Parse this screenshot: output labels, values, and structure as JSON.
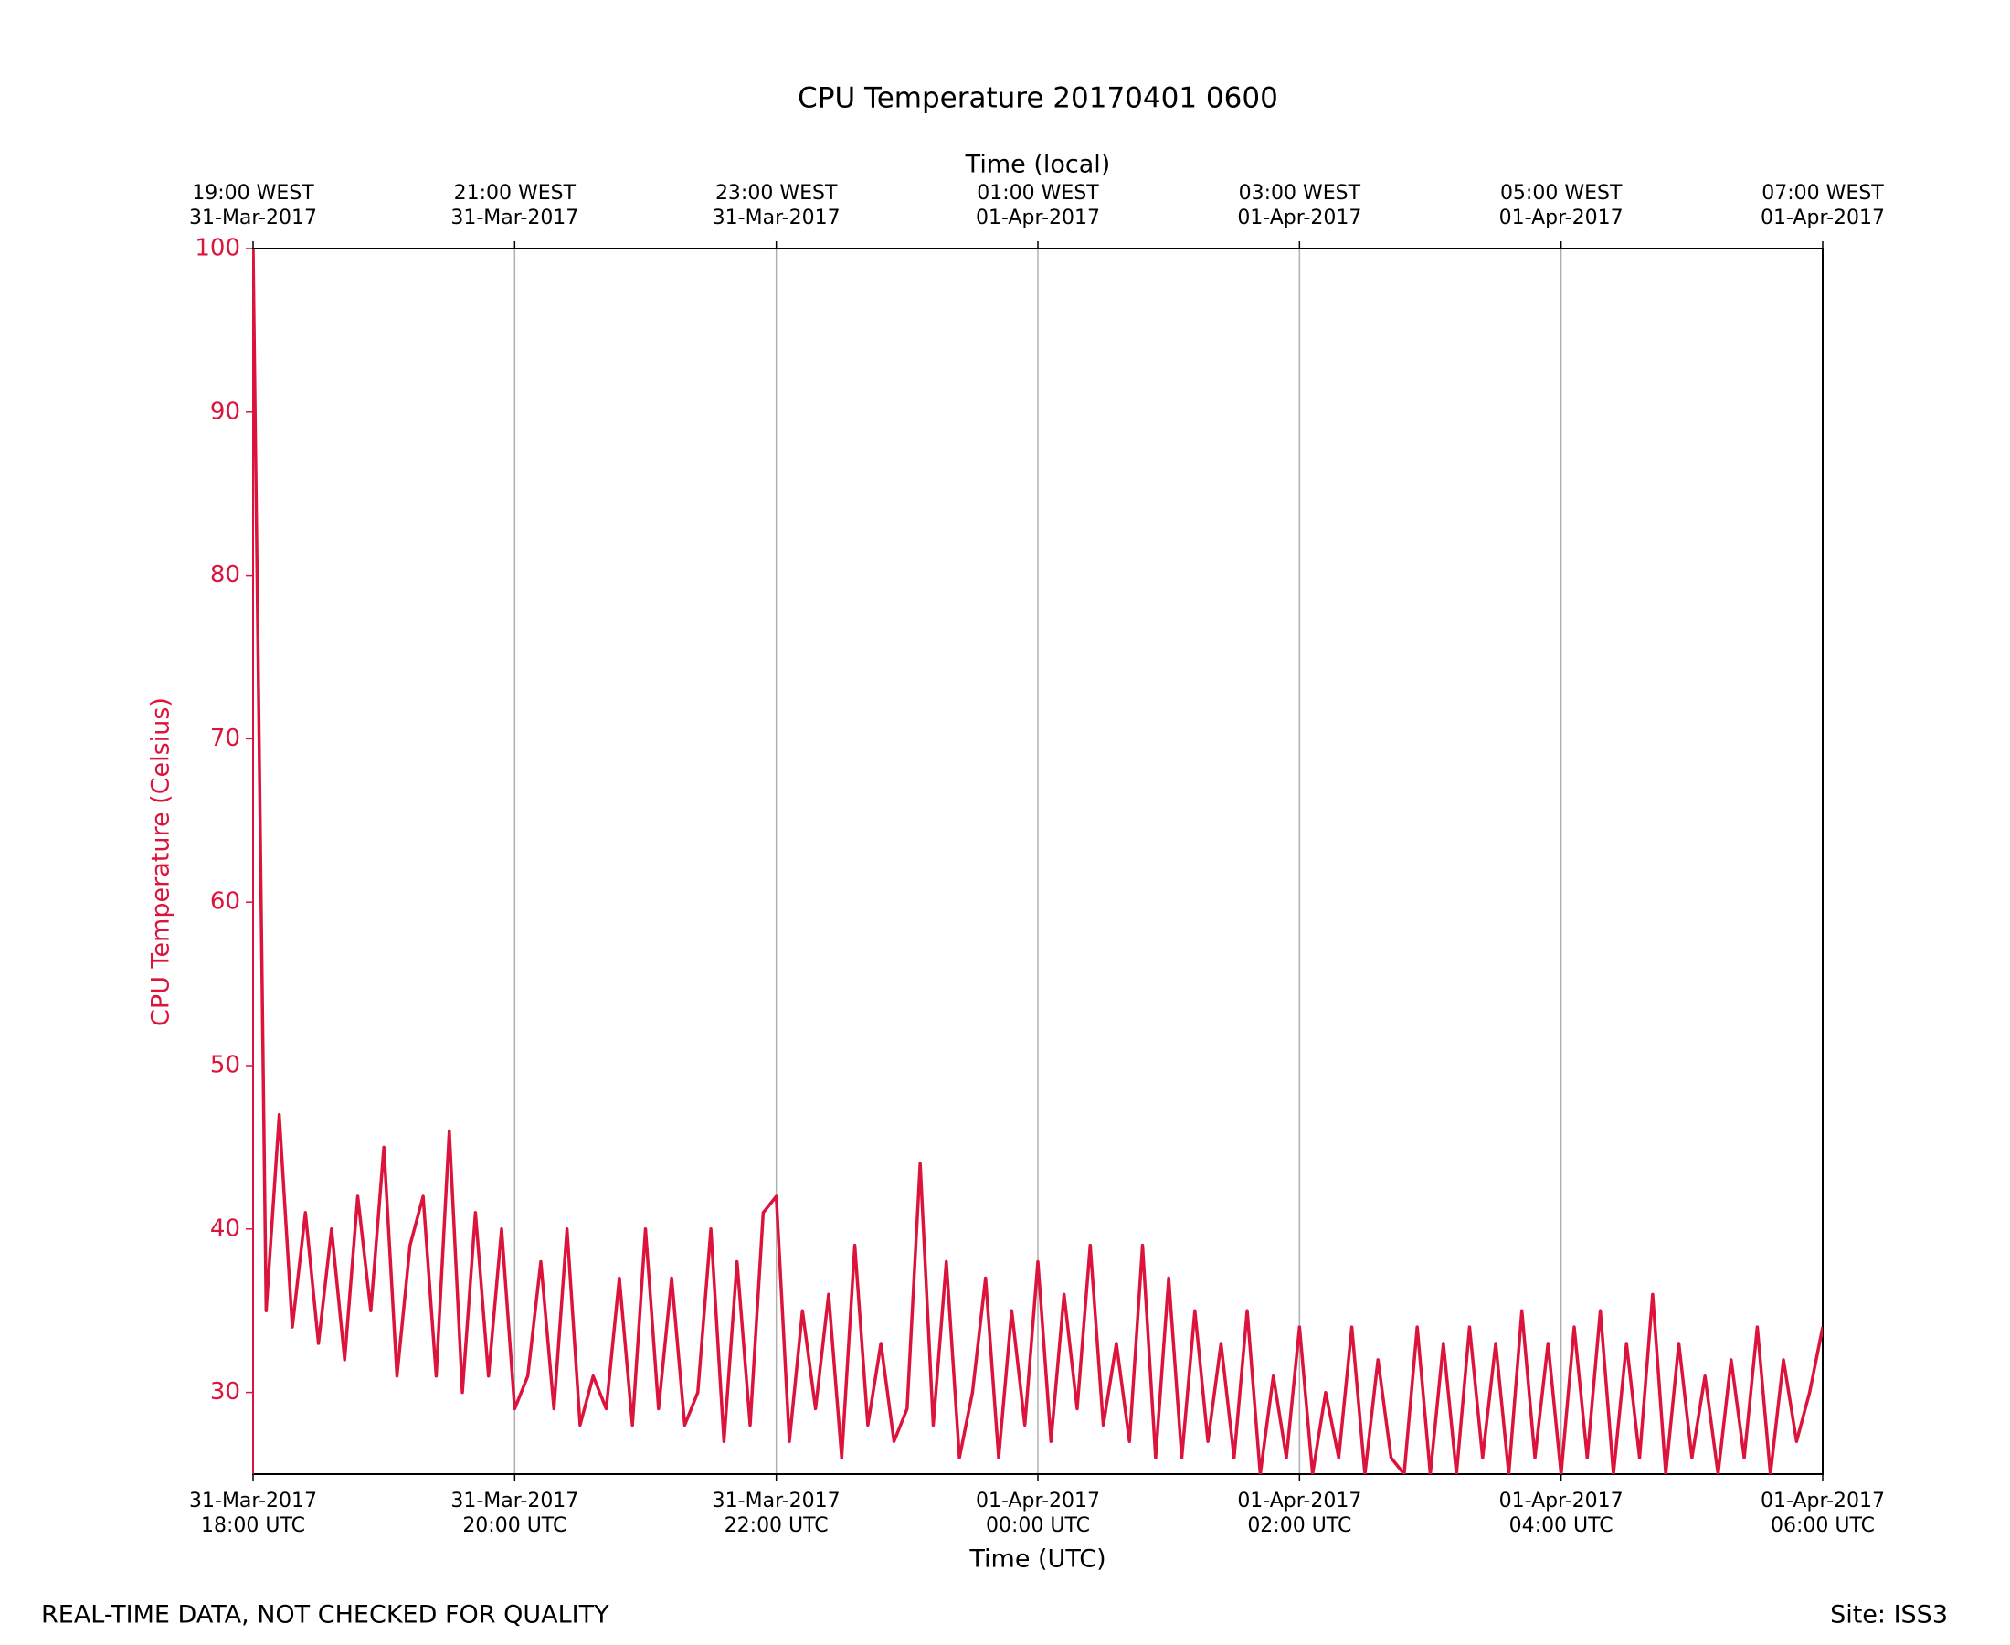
{
  "chart_data": {
    "type": "line",
    "title": "CPU Temperature 20170401 0600",
    "xlabel": "Time (UTC)",
    "x2label": "Time (local)",
    "ylabel": "CPU Temperature (Celsius)",
    "footer_left": "REAL-TIME DATA, NOT CHECKED FOR QUALITY",
    "footer_right": "Site: ISS3",
    "grid": "x",
    "xlim": [
      "2017-03-31 18:00",
      "2017-04-01 06:00"
    ],
    "xticks": [
      {
        "value": "2017-03-31 18:00",
        "label": [
          "31-Mar-2017",
          "18:00 UTC"
        ]
      },
      {
        "value": "2017-03-31 20:00",
        "label": [
          "31-Mar-2017",
          "20:00 UTC"
        ]
      },
      {
        "value": "2017-03-31 22:00",
        "label": [
          "31-Mar-2017",
          "22:00 UTC"
        ]
      },
      {
        "value": "2017-04-01 00:00",
        "label": [
          "01-Apr-2017",
          "00:00 UTC"
        ]
      },
      {
        "value": "2017-04-01 02:00",
        "label": [
          "01-Apr-2017",
          "02:00 UTC"
        ]
      },
      {
        "value": "2017-04-01 04:00",
        "label": [
          "01-Apr-2017",
          "04:00 UTC"
        ]
      },
      {
        "value": "2017-04-01 06:00",
        "label": [
          "01-Apr-2017",
          "06:00 UTC"
        ]
      }
    ],
    "x2ticks": [
      {
        "value": "2017-03-31 18:00",
        "label": [
          "19:00 WEST",
          "31-Mar-2017"
        ]
      },
      {
        "value": "2017-03-31 20:00",
        "label": [
          "21:00 WEST",
          "31-Mar-2017"
        ]
      },
      {
        "value": "2017-03-31 22:00",
        "label": [
          "23:00 WEST",
          "31-Mar-2017"
        ]
      },
      {
        "value": "2017-04-01 00:00",
        "label": [
          "01:00 WEST",
          "01-Apr-2017"
        ]
      },
      {
        "value": "2017-04-01 02:00",
        "label": [
          "03:00 WEST",
          "01-Apr-2017"
        ]
      },
      {
        "value": "2017-04-01 04:00",
        "label": [
          "05:00 WEST",
          "01-Apr-2017"
        ]
      },
      {
        "value": "2017-04-01 06:00",
        "label": [
          "07:00 WEST",
          "01-Apr-2017"
        ]
      }
    ],
    "ylim": [
      25,
      100
    ],
    "yticks": [
      30,
      40,
      50,
      60,
      70,
      80,
      90,
      100
    ],
    "x": [
      "2017-03-31 18:00",
      "2017-03-31 18:06",
      "2017-03-31 18:12",
      "2017-03-31 18:18",
      "2017-03-31 18:24",
      "2017-03-31 18:30",
      "2017-03-31 18:36",
      "2017-03-31 18:42",
      "2017-03-31 18:48",
      "2017-03-31 18:54",
      "2017-03-31 19:00",
      "2017-03-31 19:06",
      "2017-03-31 19:12",
      "2017-03-31 19:18",
      "2017-03-31 19:24",
      "2017-03-31 19:30",
      "2017-03-31 19:36",
      "2017-03-31 19:42",
      "2017-03-31 19:48",
      "2017-03-31 19:54",
      "2017-03-31 20:00",
      "2017-03-31 20:06",
      "2017-03-31 20:12",
      "2017-03-31 20:18",
      "2017-03-31 20:24",
      "2017-03-31 20:30",
      "2017-03-31 20:36",
      "2017-03-31 20:42",
      "2017-03-31 20:48",
      "2017-03-31 20:54",
      "2017-03-31 21:00",
      "2017-03-31 21:06",
      "2017-03-31 21:12",
      "2017-03-31 21:18",
      "2017-03-31 21:24",
      "2017-03-31 21:30",
      "2017-03-31 21:36",
      "2017-03-31 21:42",
      "2017-03-31 21:48",
      "2017-03-31 21:54",
      "2017-03-31 22:00",
      "2017-03-31 22:06",
      "2017-03-31 22:12",
      "2017-03-31 22:18",
      "2017-03-31 22:24",
      "2017-03-31 22:30",
      "2017-03-31 22:36",
      "2017-03-31 22:42",
      "2017-03-31 22:48",
      "2017-03-31 22:54",
      "2017-03-31 23:00",
      "2017-03-31 23:06",
      "2017-03-31 23:12",
      "2017-03-31 23:18",
      "2017-03-31 23:24",
      "2017-03-31 23:30",
      "2017-03-31 23:36",
      "2017-03-31 23:42",
      "2017-03-31 23:48",
      "2017-03-31 23:54",
      "2017-04-01 00:00",
      "2017-04-01 00:06",
      "2017-04-01 00:12",
      "2017-04-01 00:18",
      "2017-04-01 00:24",
      "2017-04-01 00:30",
      "2017-04-01 00:36",
      "2017-04-01 00:42",
      "2017-04-01 00:48",
      "2017-04-01 00:54",
      "2017-04-01 01:00",
      "2017-04-01 01:06",
      "2017-04-01 01:12",
      "2017-04-01 01:18",
      "2017-04-01 01:24",
      "2017-04-01 01:30",
      "2017-04-01 01:36",
      "2017-04-01 01:42",
      "2017-04-01 01:48",
      "2017-04-01 01:54",
      "2017-04-01 02:00",
      "2017-04-01 02:06",
      "2017-04-01 02:12",
      "2017-04-01 02:18",
      "2017-04-01 02:24",
      "2017-04-01 02:30",
      "2017-04-01 02:36",
      "2017-04-01 02:42",
      "2017-04-01 02:48",
      "2017-04-01 02:54",
      "2017-04-01 03:00",
      "2017-04-01 03:06",
      "2017-04-01 03:12",
      "2017-04-01 03:18",
      "2017-04-01 03:24",
      "2017-04-01 03:30",
      "2017-04-01 03:36",
      "2017-04-01 03:42",
      "2017-04-01 03:48",
      "2017-04-01 03:54",
      "2017-04-01 04:00",
      "2017-04-01 04:06",
      "2017-04-01 04:12",
      "2017-04-01 04:18",
      "2017-04-01 04:24",
      "2017-04-01 04:30",
      "2017-04-01 04:36",
      "2017-04-01 04:42",
      "2017-04-01 04:48",
      "2017-04-01 04:54",
      "2017-04-01 05:00",
      "2017-04-01 05:06",
      "2017-04-01 05:12",
      "2017-04-01 05:18",
      "2017-04-01 05:24",
      "2017-04-01 05:30",
      "2017-04-01 05:36",
      "2017-04-01 05:42",
      "2017-04-01 05:48",
      "2017-04-01 05:54",
      "2017-04-01 06:00"
    ],
    "series": [
      {
        "name": "CPU Temperature",
        "color": "#dc143c",
        "values": [
          100,
          35,
          47,
          34,
          41,
          33,
          40,
          32,
          42,
          35,
          45,
          31,
          39,
          42,
          31,
          46,
          30,
          41,
          31,
          40,
          29,
          31,
          38,
          29,
          40,
          28,
          31,
          29,
          37,
          28,
          40,
          29,
          37,
          28,
          30,
          40,
          27,
          38,
          28,
          41,
          42,
          27,
          35,
          29,
          36,
          26,
          39,
          28,
          33,
          27,
          29,
          44,
          28,
          38,
          26,
          30,
          37,
          26,
          35,
          28,
          38,
          27,
          36,
          29,
          39,
          28,
          33,
          27,
          39,
          26,
          37,
          26,
          35,
          27,
          33,
          26,
          35,
          25,
          31,
          26,
          34,
          25,
          30,
          26,
          34,
          25,
          32,
          26,
          25,
          34,
          25,
          33,
          25,
          34,
          26,
          33,
          25,
          35,
          26,
          33,
          25,
          34,
          26,
          35,
          25,
          33,
          26,
          36,
          25,
          33,
          26,
          31,
          25,
          32,
          26,
          34,
          25,
          32,
          27,
          30,
          34
        ]
      }
    ]
  }
}
